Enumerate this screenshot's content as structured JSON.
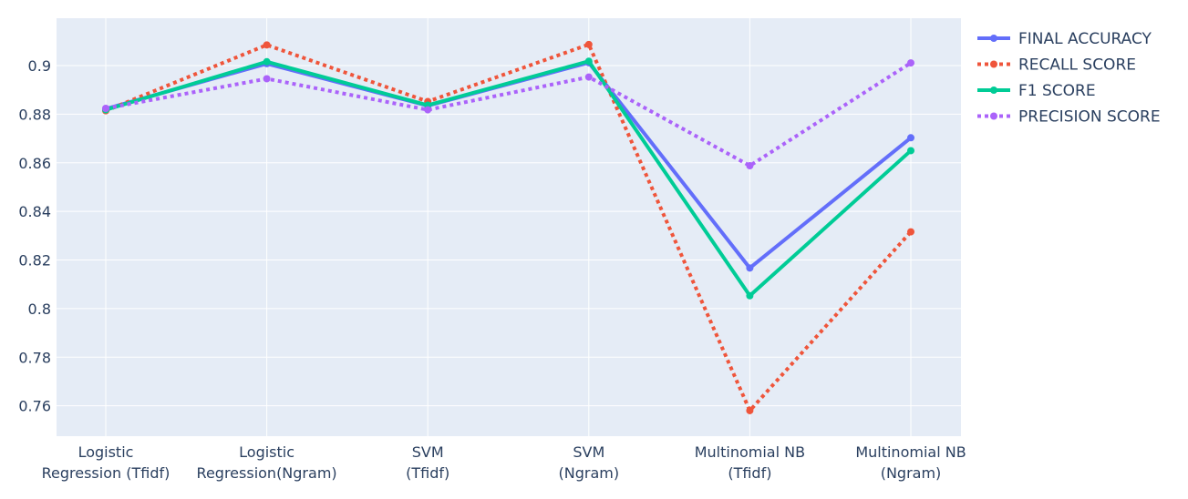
{
  "chart_data": {
    "type": "line",
    "title": "",
    "xlabel": "",
    "ylabel": "",
    "categories": [
      [
        "Logistic",
        "Regression (Tfidf)"
      ],
      [
        "Logistic",
        "Regression(Ngram)"
      ],
      [
        "SVM",
        "(Tfidf)"
      ],
      [
        "SVM",
        "(Ngram)"
      ],
      [
        "Multinomial NB",
        "(Tfidf)"
      ],
      [
        "Multinomial NB",
        "(Ngram)"
      ]
    ],
    "yticks": [
      "0.76",
      "0.78",
      "0.8",
      "0.82",
      "0.84",
      "0.86",
      "0.88",
      "0.9"
    ],
    "ytick_values": [
      0.76,
      0.78,
      0.8,
      0.82,
      0.84,
      0.86,
      0.88,
      0.9
    ],
    "ylim": [
      0.7475,
      0.9195
    ],
    "grid": true,
    "legend_position": "top-right",
    "plot_background": "#e5ecf6",
    "series": [
      {
        "name": "FINAL ACCURACY",
        "color": "#636efa",
        "dash": "solid",
        "width": 4,
        "values": [
          0.8822,
          0.9008,
          0.8835,
          0.9012,
          0.8167,
          0.8703
        ]
      },
      {
        "name": "RECALL SCORE",
        "color": "#ef553b",
        "dash": "dot",
        "width": 4,
        "values": [
          0.8814,
          0.9085,
          0.8852,
          0.9087,
          0.758,
          0.8316
        ]
      },
      {
        "name": "F1 SCORE",
        "color": "#00cc96",
        "dash": "solid",
        "width": 4,
        "values": [
          0.8818,
          0.9016,
          0.8837,
          0.9018,
          0.8053,
          0.865
        ]
      },
      {
        "name": "PRECISION SCORE",
        "color": "#ab63fa",
        "dash": "dot",
        "width": 4,
        "values": [
          0.8824,
          0.8946,
          0.8818,
          0.8953,
          0.8588,
          0.9011
        ]
      }
    ]
  }
}
